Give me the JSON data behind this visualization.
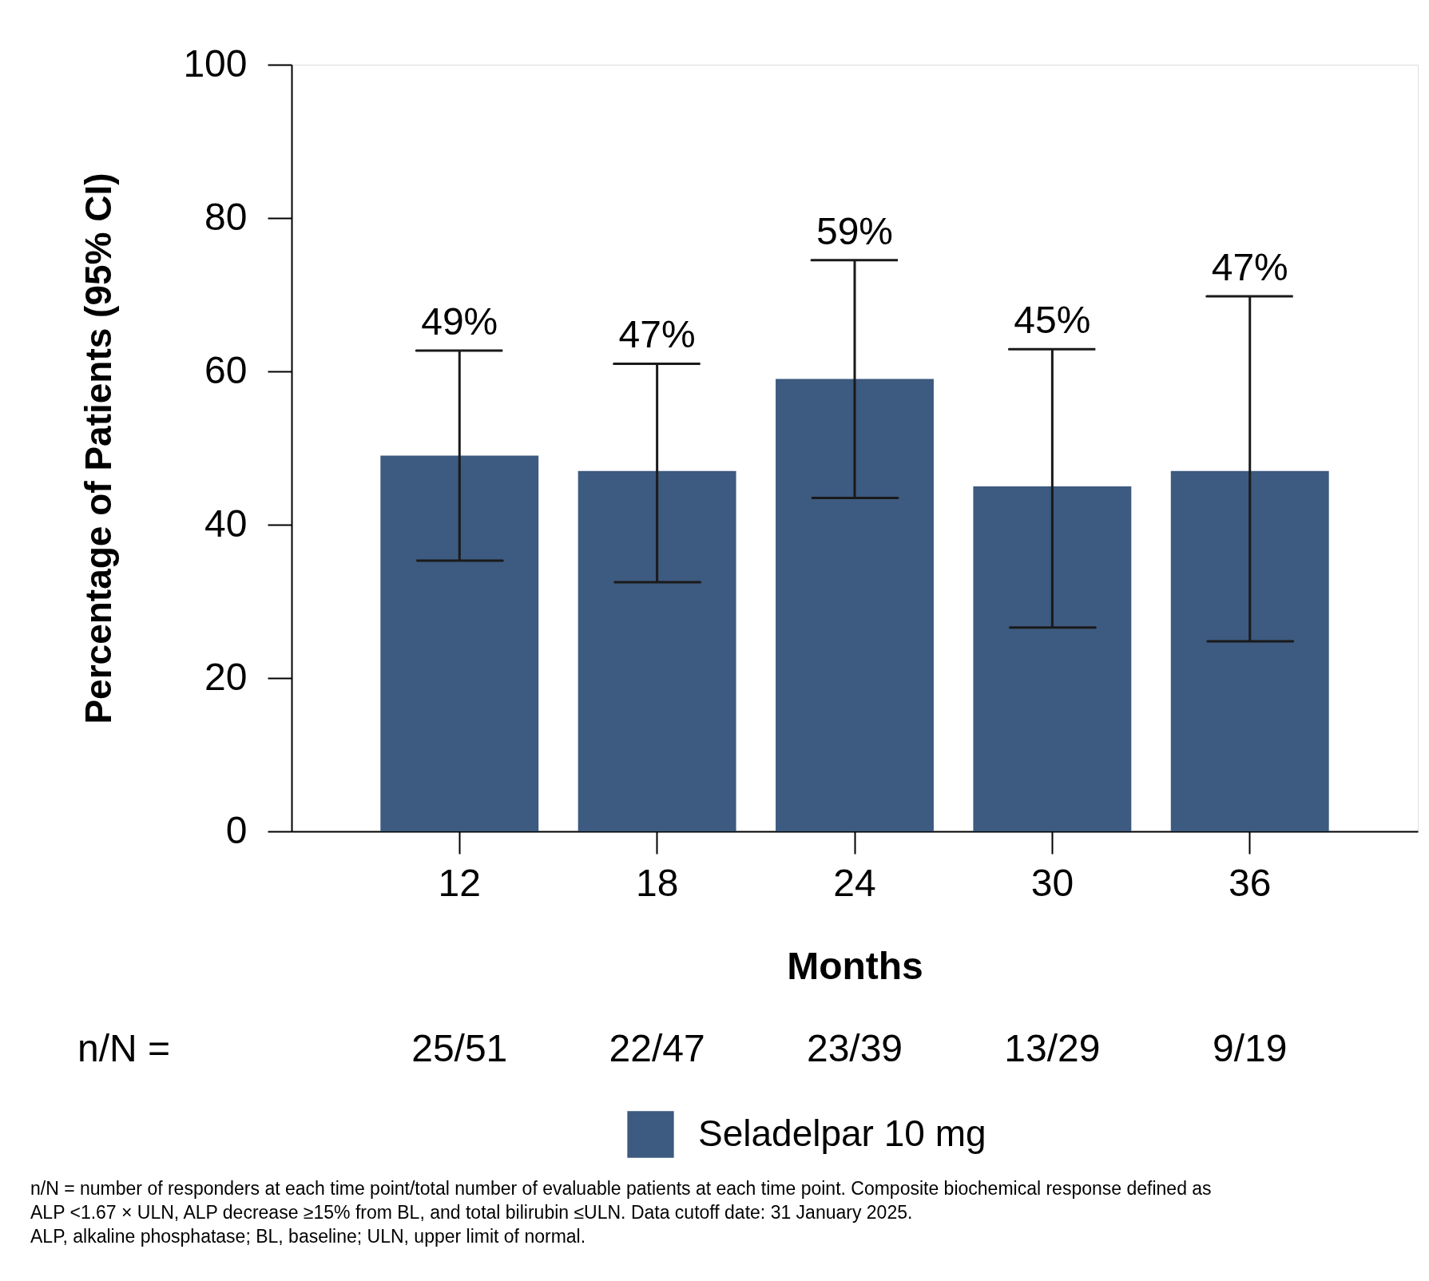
{
  "chart_data": {
    "type": "bar",
    "xlabel": "Months",
    "ylabel": "Percentage of Patients (95% CI)",
    "categories": [
      "12",
      "18",
      "24",
      "30",
      "36"
    ],
    "series": [
      {
        "name": "Seladelpar 10 mg",
        "color": "#3d5a80",
        "values": [
          49,
          47,
          59,
          45,
          47
        ],
        "errors": [
          [
            35.3,
            62.7
          ],
          [
            32.5,
            61.0
          ],
          [
            43.5,
            74.5
          ],
          [
            26.6,
            62.9
          ],
          [
            24.8,
            69.8
          ]
        ]
      }
    ],
    "ylim": [
      0,
      100
    ],
    "yticks": [
      0,
      20,
      40,
      60,
      80,
      100
    ],
    "grid": false,
    "legend": "bottom",
    "annotations": [
      {
        "text": "49%",
        "x": "12",
        "y": 62.7
      },
      {
        "text": "47%",
        "x": "18",
        "y": 61.0
      },
      {
        "text": "59%",
        "x": "24",
        "y": 74.5
      },
      {
        "text": "45%",
        "x": "30",
        "y": 62.9
      },
      {
        "text": "47%",
        "x": "36",
        "y": 69.8
      },
      "n/N =",
      "25/51",
      "22/47",
      "23/39",
      "13/29",
      "9/19",
      "n/N = number of responders at each time point/total number of evaluable patients at each time point. Composite biochemical response defined as",
      "ALP <1.67 × ULN, ALP decrease ≥15% from BL, and total bilirubin ≤ULN. Data cutoff date: 31 January 2025.",
      "ALP, alkaline phosphatase; BL, baseline; ULN, upper limit of normal."
    ]
  }
}
